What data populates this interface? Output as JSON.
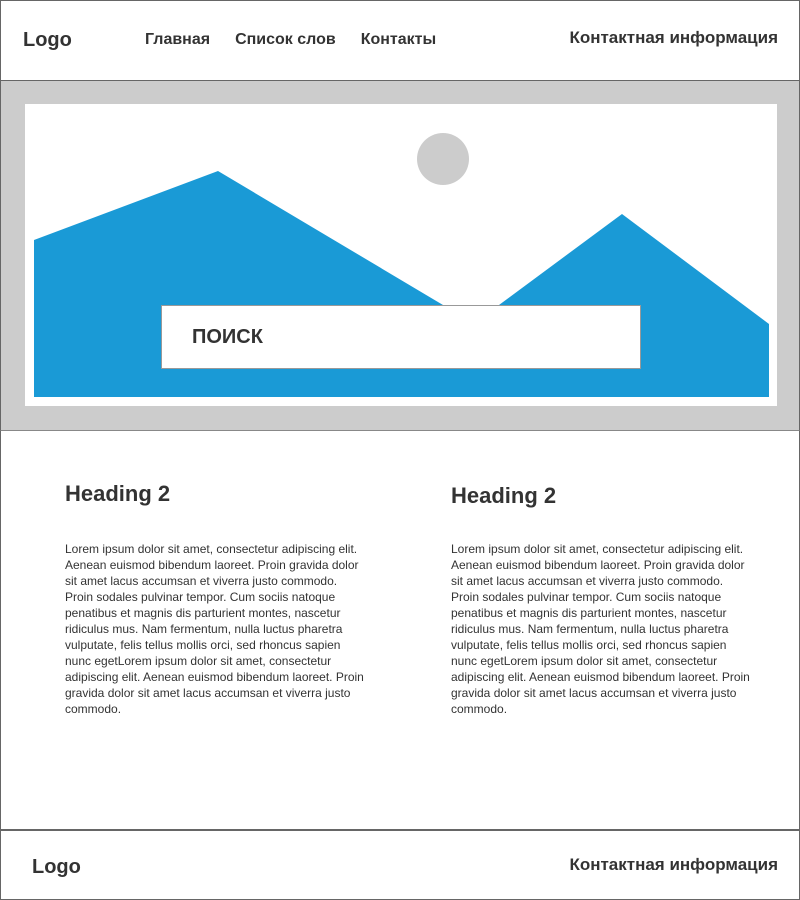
{
  "header": {
    "logo": "Logo",
    "nav": [
      "Главная",
      "Список слов",
      "Контакты"
    ],
    "contact": "Контактная информация"
  },
  "hero": {
    "search_label": "ПОИСК",
    "accent_color": "#1a9ad6",
    "sun_color": "#cccccc",
    "image_icon": "landscape-placeholder-icon"
  },
  "content": {
    "columns": [
      {
        "heading": "Heading 2",
        "text": "Lorem ipsum dolor sit amet, consectetur adipiscing elit. Aenean euismod bibendum laoreet. Proin gravida dolor sit amet lacus accumsan et viverra justo commodo. Proin sodales pulvinar tempor. Cum sociis natoque penatibus et magnis dis parturient montes, nascetur ridiculus mus. Nam fermentum, nulla luctus pharetra vulputate, felis tellus mollis orci, sed rhoncus sapien nunc egetLorem ipsum dolor sit amet, consectetur adipiscing elit. Aenean euismod bibendum laoreet. Proin gravida dolor sit amet lacus accumsan et viverra justo commodo."
      },
      {
        "heading": "Heading 2",
        "text": "Lorem ipsum dolor sit amet, consectetur adipiscing elit. Aenean euismod bibendum laoreet. Proin gravida dolor sit amet lacus accumsan et viverra justo commodo. Proin sodales pulvinar tempor. Cum sociis natoque penatibus et magnis dis parturient montes, nascetur ridiculus mus. Nam fermentum, nulla luctus pharetra vulputate, felis tellus mollis orci, sed rhoncus sapien nunc egetLorem ipsum dolor sit amet, consectetur adipiscing elit. Aenean euismod bibendum laoreet. Proin gravida dolor sit amet lacus accumsan et viverra justo commodo."
      }
    ]
  },
  "footer": {
    "logo": "Logo",
    "contact": "Контактная информация"
  }
}
